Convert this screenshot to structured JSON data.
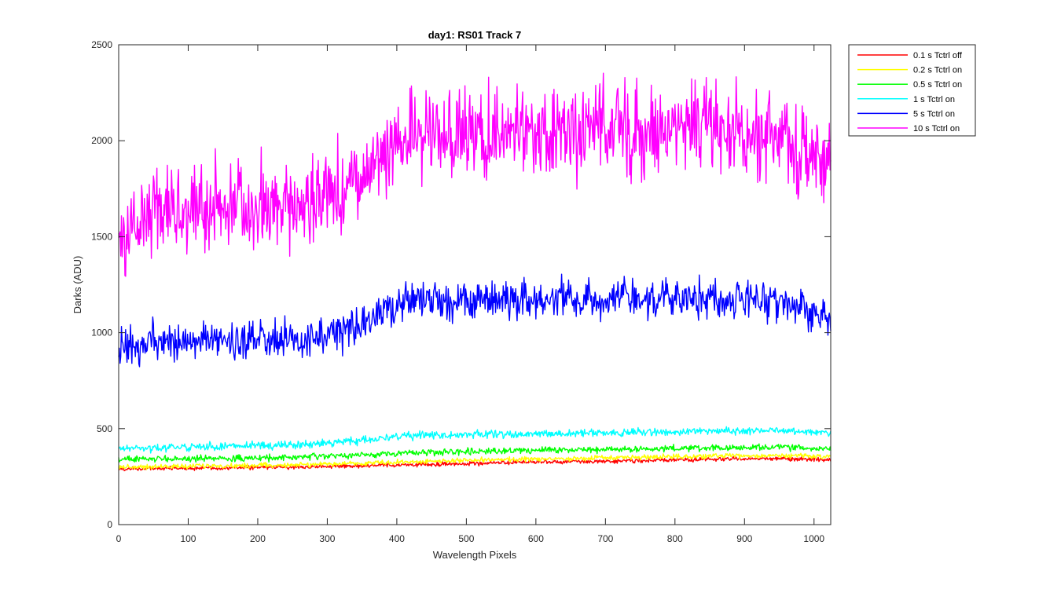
{
  "chart_data": {
    "type": "line",
    "title": "day1: RS01  Track 7",
    "xlabel": "Wavelength Pixels",
    "ylabel": "Darks (ADU)",
    "xlim": [
      0,
      1024
    ],
    "ylim": [
      0,
      2500
    ],
    "xticks": [
      0,
      100,
      200,
      300,
      400,
      500,
      600,
      700,
      800,
      900,
      1000
    ],
    "yticks": [
      0,
      500,
      1000,
      1500,
      2000,
      2500
    ],
    "grid": false,
    "legend_position": "outside-top-right",
    "series": [
      {
        "name": "0.1 s Tctrl off",
        "color": "#ff0000",
        "x": [
          0,
          50,
          100,
          150,
          200,
          250,
          300,
          350,
          400,
          450,
          500,
          550,
          600,
          650,
          700,
          750,
          800,
          850,
          900,
          950,
          1000,
          1024
        ],
        "values": [
          290,
          292,
          294,
          296,
          298,
          300,
          303,
          306,
          310,
          314,
          318,
          322,
          325,
          328,
          331,
          334,
          337,
          340,
          343,
          345,
          340,
          338
        ],
        "noise": 12
      },
      {
        "name": "0.2 s Tctrl on",
        "color": "#ffff00",
        "x": [
          0,
          50,
          100,
          150,
          200,
          250,
          300,
          350,
          400,
          450,
          500,
          550,
          600,
          650,
          700,
          750,
          800,
          850,
          900,
          950,
          1000,
          1024
        ],
        "values": [
          300,
          302,
          304,
          306,
          308,
          311,
          315,
          320,
          325,
          330,
          334,
          338,
          341,
          344,
          347,
          350,
          353,
          356,
          358,
          360,
          356,
          354
        ],
        "noise": 14
      },
      {
        "name": "0.5 s Tctrl on",
        "color": "#00ff00",
        "x": [
          0,
          50,
          100,
          150,
          200,
          250,
          300,
          350,
          400,
          450,
          500,
          550,
          600,
          650,
          700,
          750,
          800,
          850,
          900,
          950,
          1000,
          1024
        ],
        "values": [
          340,
          342,
          344,
          345,
          346,
          350,
          356,
          362,
          372,
          378,
          382,
          385,
          388,
          390,
          392,
          394,
          396,
          398,
          400,
          402,
          398,
          396
        ],
        "noise": 18
      },
      {
        "name": "1 s Tctrl on",
        "color": "#00ffff",
        "x": [
          0,
          50,
          100,
          150,
          200,
          250,
          300,
          350,
          400,
          450,
          500,
          550,
          600,
          650,
          700,
          750,
          800,
          850,
          900,
          950,
          1000,
          1024
        ],
        "values": [
          395,
          400,
          405,
          408,
          410,
          415,
          425,
          440,
          458,
          466,
          470,
          472,
          474,
          476,
          478,
          480,
          483,
          486,
          490,
          492,
          485,
          480
        ],
        "noise": 22
      },
      {
        "name": "5 s Tctrl on",
        "color": "#0000ff",
        "x": [
          0,
          50,
          100,
          150,
          200,
          250,
          300,
          350,
          400,
          450,
          500,
          550,
          600,
          650,
          700,
          750,
          800,
          850,
          900,
          950,
          1000,
          1024
        ],
        "values": [
          900,
          950,
          960,
          955,
          950,
          960,
          990,
          1030,
          1150,
          1160,
          1165,
          1170,
          1175,
          1175,
          1180,
          1175,
          1175,
          1180,
          1175,
          1160,
          1100,
          1070
        ],
        "noise": 110
      },
      {
        "name": "10 s Tctrl on",
        "color": "#ff00ff",
        "x": [
          0,
          50,
          100,
          150,
          200,
          250,
          300,
          350,
          400,
          450,
          500,
          550,
          600,
          650,
          700,
          750,
          800,
          850,
          900,
          950,
          1000,
          1024
        ],
        "values": [
          1450,
          1620,
          1650,
          1640,
          1640,
          1660,
          1700,
          1780,
          2000,
          2030,
          2040,
          2050,
          2050,
          2050,
          2060,
          2050,
          2050,
          2060,
          2060,
          2020,
          1900,
          1800
        ],
        "noise": 260
      }
    ]
  }
}
